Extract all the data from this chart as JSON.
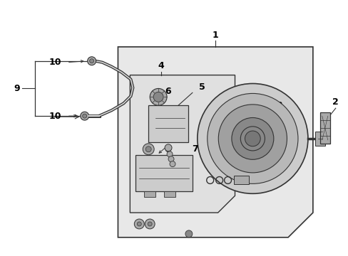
{
  "bg_color": "#ffffff",
  "line_color": "#333333",
  "box_fill": "#e8e8e8",
  "inner_fill": "#e0e0e0",
  "part_fill": "#cccccc",
  "dark_fill": "#aaaaaa",
  "darker_fill": "#888888"
}
